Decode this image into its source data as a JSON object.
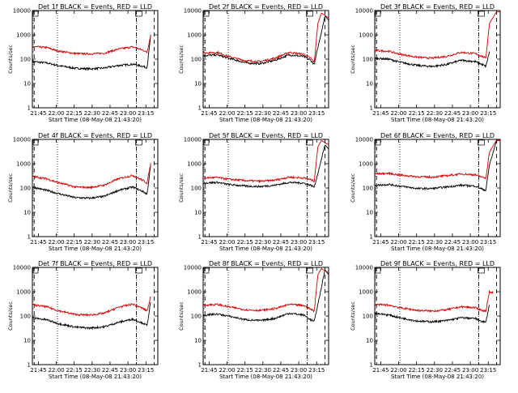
{
  "window": {
    "background": "#ffffff"
  },
  "colors": {
    "events": "#000000",
    "lld": "#d40000",
    "axes": "#000000"
  },
  "x_ticks": [
    "21:45",
    "22:00",
    "22:15",
    "22:30",
    "22:45",
    "23:00",
    "23:15"
  ],
  "y_ticks": [
    "1",
    "10",
    "100",
    "1000",
    "10000"
  ],
  "xlabel": "Start Time (08-May-08 21:43:20)",
  "ylabel": "Counts/sec",
  "chart_data": [
    {
      "type": "line",
      "title": "Det 1f BLACK = Events, RED = LLD",
      "ylim": [
        1,
        10000
      ],
      "yscale": "log",
      "x_range_min": [
        0,
        35
      ],
      "series": [
        {
          "name": "Events",
          "values": [
            [
              0,
              80
            ],
            [
              4,
              70
            ],
            [
              7,
              55
            ],
            [
              12,
              42
            ],
            [
              16,
              40
            ],
            [
              20,
              43
            ],
            [
              24,
              55
            ],
            [
              28,
              62
            ],
            [
              31,
              50
            ],
            [
              32,
              45
            ],
            [
              33,
              900
            ]
          ]
        },
        {
          "name": "LLD",
          "values": [
            [
              0,
              330
            ],
            [
              4,
              300
            ],
            [
              7,
              220
            ],
            [
              12,
              170
            ],
            [
              16,
              165
            ],
            [
              20,
              175
            ],
            [
              24,
              260
            ],
            [
              28,
              320
            ],
            [
              31,
              230
            ],
            [
              32,
              190
            ],
            [
              33,
              1000
            ]
          ]
        }
      ],
      "vlines": {
        "dashed": [
          0.5,
          29,
          34
        ],
        "dotted": [
          7,
          29
        ]
      }
    },
    {
      "type": "line",
      "title": "Det 2f BLACK = Events, RED = LLD",
      "ylim": [
        1,
        10000
      ],
      "yscale": "log",
      "x_range_min": [
        0,
        35
      ],
      "series": [
        {
          "name": "Events",
          "values": [
            [
              0,
              140
            ],
            [
              4,
              150
            ],
            [
              7,
              110
            ],
            [
              12,
              70
            ],
            [
              16,
              65
            ],
            [
              20,
              90
            ],
            [
              24,
              150
            ],
            [
              28,
              130
            ],
            [
              30,
              90
            ],
            [
              31,
              60
            ],
            [
              32,
              300
            ],
            [
              34,
              6000
            ],
            [
              35,
              4000
            ]
          ]
        },
        {
          "name": "LLD",
          "values": [
            [
              0,
              180
            ],
            [
              4,
              190
            ],
            [
              7,
              130
            ],
            [
              12,
              85
            ],
            [
              16,
              80
            ],
            [
              20,
              110
            ],
            [
              24,
              190
            ],
            [
              28,
              160
            ],
            [
              30,
              110
            ],
            [
              31,
              75
            ],
            [
              32,
              3000
            ],
            [
              33,
              8000
            ],
            [
              35,
              5000
            ]
          ]
        }
      ],
      "vlines": {
        "dashed": [
          0.5,
          29,
          34
        ],
        "dotted": [
          7,
          29
        ]
      }
    },
    {
      "type": "line",
      "title": "Det 3f BLACK = Events, RED = LLD",
      "ylim": [
        1,
        10000
      ],
      "yscale": "log",
      "x_range_min": [
        0,
        35
      ],
      "series": [
        {
          "name": "Events",
          "values": [
            [
              0,
              110
            ],
            [
              4,
              100
            ],
            [
              7,
              75
            ],
            [
              12,
              55
            ],
            [
              16,
              50
            ],
            [
              20,
              60
            ],
            [
              24,
              90
            ],
            [
              28,
              80
            ],
            [
              30,
              60
            ],
            [
              31,
              50
            ],
            [
              32,
              200
            ]
          ]
        },
        {
          "name": "LLD",
          "values": [
            [
              0,
              230
            ],
            [
              4,
              210
            ],
            [
              7,
              160
            ],
            [
              12,
              120
            ],
            [
              16,
              110
            ],
            [
              20,
              130
            ],
            [
              24,
              190
            ],
            [
              28,
              170
            ],
            [
              30,
              130
            ],
            [
              31,
              110
            ],
            [
              32,
              3000
            ],
            [
              34,
              9000
            ],
            [
              35,
              9000
            ]
          ]
        }
      ],
      "vlines": {
        "dashed": [
          0.5,
          29,
          34
        ],
        "dotted": [
          7,
          29
        ]
      }
    },
    {
      "type": "line",
      "title": "Det 4f BLACK = Events, RED = LLD",
      "ylim": [
        1,
        10000
      ],
      "yscale": "log",
      "x_range_min": [
        0,
        35
      ],
      "series": [
        {
          "name": "Events",
          "values": [
            [
              0,
              110
            ],
            [
              4,
              80
            ],
            [
              7,
              60
            ],
            [
              12,
              40
            ],
            [
              16,
              38
            ],
            [
              20,
              45
            ],
            [
              24,
              80
            ],
            [
              28,
              110
            ],
            [
              31,
              70
            ],
            [
              32,
              55
            ],
            [
              33,
              900
            ]
          ]
        },
        {
          "name": "LLD",
          "values": [
            [
              0,
              300
            ],
            [
              4,
              240
            ],
            [
              7,
              170
            ],
            [
              12,
              110
            ],
            [
              16,
              105
            ],
            [
              20,
              130
            ],
            [
              24,
              240
            ],
            [
              28,
              330
            ],
            [
              31,
              200
            ],
            [
              32,
              160
            ],
            [
              33,
              1000
            ]
          ]
        }
      ],
      "vlines": {
        "dashed": [
          0.5,
          29,
          34
        ],
        "dotted": [
          7,
          29
        ]
      }
    },
    {
      "type": "line",
      "title": "Det 5f BLACK = Events, RED = LLD",
      "ylim": [
        1,
        10000
      ],
      "yscale": "log",
      "x_range_min": [
        0,
        35
      ],
      "series": [
        {
          "name": "Events",
          "values": [
            [
              0,
              160
            ],
            [
              4,
              170
            ],
            [
              7,
              140
            ],
            [
              12,
              120
            ],
            [
              16,
              115
            ],
            [
              20,
              130
            ],
            [
              24,
              170
            ],
            [
              28,
              160
            ],
            [
              30,
              130
            ],
            [
              31,
              110
            ],
            [
              32,
              400
            ],
            [
              34,
              6000
            ],
            [
              35,
              4000
            ]
          ]
        },
        {
          "name": "LLD",
          "values": [
            [
              0,
              260
            ],
            [
              4,
              270
            ],
            [
              7,
              230
            ],
            [
              12,
              200
            ],
            [
              16,
              190
            ],
            [
              20,
              210
            ],
            [
              24,
              280
            ],
            [
              28,
              260
            ],
            [
              30,
              220
            ],
            [
              31,
              190
            ],
            [
              32,
              5000
            ],
            [
              33,
              9000
            ],
            [
              35,
              6000
            ]
          ]
        }
      ],
      "vlines": {
        "dashed": [
          0.5,
          29,
          34
        ],
        "dotted": [
          7,
          29
        ]
      }
    },
    {
      "type": "line",
      "title": "Det 6f BLACK = Events, RED = LLD",
      "ylim": [
        1,
        10000
      ],
      "yscale": "log",
      "x_range_min": [
        0,
        35
      ],
      "series": [
        {
          "name": "Events",
          "values": [
            [
              0,
              130
            ],
            [
              4,
              140
            ],
            [
              7,
              120
            ],
            [
              12,
              95
            ],
            [
              16,
              95
            ],
            [
              20,
              110
            ],
            [
              24,
              130
            ],
            [
              28,
              120
            ],
            [
              30,
              90
            ],
            [
              31,
              80
            ],
            [
              32,
              900
            ],
            [
              34,
              9000
            ],
            [
              35,
              9000
            ]
          ]
        },
        {
          "name": "LLD",
          "values": [
            [
              0,
              380
            ],
            [
              4,
              400
            ],
            [
              7,
              340
            ],
            [
              12,
              290
            ],
            [
              16,
              280
            ],
            [
              20,
              320
            ],
            [
              24,
              380
            ],
            [
              28,
              350
            ],
            [
              30,
              280
            ],
            [
              31,
              250
            ],
            [
              32,
              3000
            ],
            [
              34,
              9500
            ],
            [
              35,
              9000
            ]
          ]
        }
      ],
      "vlines": {
        "dashed": [
          0.5,
          29,
          34
        ],
        "dotted": [
          7,
          29
        ]
      }
    },
    {
      "type": "line",
      "title": "Det 7f BLACK = Events, RED = LLD",
      "ylim": [
        1,
        10000
      ],
      "yscale": "log",
      "x_range_min": [
        0,
        35
      ],
      "series": [
        {
          "name": "Events",
          "values": [
            [
              0,
              85
            ],
            [
              4,
              70
            ],
            [
              7,
              50
            ],
            [
              12,
              35
            ],
            [
              16,
              32
            ],
            [
              20,
              36
            ],
            [
              24,
              55
            ],
            [
              28,
              75
            ],
            [
              31,
              50
            ],
            [
              32,
              40
            ],
            [
              33,
              400
            ]
          ]
        },
        {
          "name": "LLD",
          "values": [
            [
              0,
              290
            ],
            [
              4,
              240
            ],
            [
              7,
              170
            ],
            [
              12,
              115
            ],
            [
              16,
              110
            ],
            [
              20,
              130
            ],
            [
              24,
              230
            ],
            [
              28,
              310
            ],
            [
              31,
              200
            ],
            [
              32,
              160
            ],
            [
              33,
              600
            ]
          ]
        }
      ],
      "vlines": {
        "dashed": [
          0.5,
          29,
          34
        ],
        "dotted": [
          7,
          29
        ]
      }
    },
    {
      "type": "line",
      "title": "Det 8f BLACK = Events, RED = LLD",
      "ylim": [
        1,
        10000
      ],
      "yscale": "log",
      "x_range_min": [
        0,
        35
      ],
      "series": [
        {
          "name": "Events",
          "values": [
            [
              0,
              110
            ],
            [
              4,
              120
            ],
            [
              7,
              100
            ],
            [
              12,
              70
            ],
            [
              16,
              65
            ],
            [
              20,
              80
            ],
            [
              24,
              130
            ],
            [
              28,
              110
            ],
            [
              30,
              70
            ],
            [
              31,
              60
            ],
            [
              32,
              300
            ],
            [
              34,
              8000
            ],
            [
              35,
              5000
            ]
          ]
        },
        {
          "name": "LLD",
          "values": [
            [
              0,
              280
            ],
            [
              4,
              300
            ],
            [
              7,
              240
            ],
            [
              12,
              180
            ],
            [
              16,
              170
            ],
            [
              20,
              200
            ],
            [
              24,
              300
            ],
            [
              28,
              270
            ],
            [
              30,
              190
            ],
            [
              31,
              160
            ],
            [
              32,
              5000
            ],
            [
              33,
              9000
            ],
            [
              35,
              6000
            ]
          ]
        }
      ],
      "vlines": {
        "dashed": [
          0.5,
          29,
          34
        ],
        "dotted": [
          7,
          29
        ]
      }
    },
    {
      "type": "line",
      "title": "Det 9f BLACK = Events, RED = LLD",
      "ylim": [
        1,
        10000
      ],
      "yscale": "log",
      "x_range_min": [
        0,
        35
      ],
      "series": [
        {
          "name": "Events",
          "values": [
            [
              0,
              130
            ],
            [
              4,
              110
            ],
            [
              7,
              85
            ],
            [
              12,
              62
            ],
            [
              16,
              58
            ],
            [
              20,
              65
            ],
            [
              24,
              85
            ],
            [
              28,
              80
            ],
            [
              30,
              60
            ],
            [
              31,
              55
            ],
            [
              32,
              300
            ]
          ]
        },
        {
          "name": "LLD",
          "values": [
            [
              0,
              300
            ],
            [
              4,
              280
            ],
            [
              7,
              220
            ],
            [
              12,
              170
            ],
            [
              16,
              160
            ],
            [
              20,
              180
            ],
            [
              24,
              240
            ],
            [
              28,
              220
            ],
            [
              30,
              170
            ],
            [
              31,
              160
            ],
            [
              32,
              1000
            ],
            [
              33,
              900
            ]
          ]
        }
      ],
      "vlines": {
        "dashed": [
          0.5,
          29,
          34
        ],
        "dotted": [
          7,
          29
        ]
      }
    }
  ]
}
